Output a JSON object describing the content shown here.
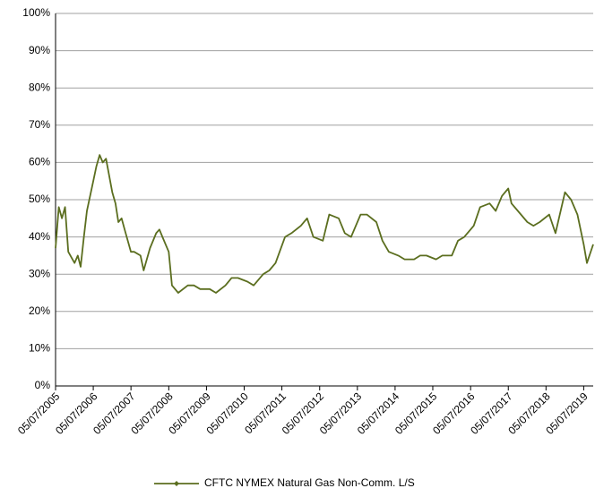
{
  "chart_data": {
    "type": "line",
    "x": [
      "05/07/2005",
      "05/08/2005",
      "05/09/2005",
      "05/10/2005",
      "05/11/2005",
      "05/01/2006",
      "05/02/2006",
      "05/03/2006",
      "05/04/2006",
      "05/05/2006",
      "05/07/2006",
      "05/08/2006",
      "05/09/2006",
      "05/10/2006",
      "05/11/2006",
      "05/01/2007",
      "05/02/2007",
      "05/03/2007",
      "05/04/2007",
      "05/05/2007",
      "05/07/2007",
      "05/08/2007",
      "05/10/2007",
      "05/11/2007",
      "05/01/2008",
      "05/03/2008",
      "05/04/2008",
      "05/05/2008",
      "05/07/2008",
      "05/08/2008",
      "05/10/2008",
      "05/01/2009",
      "05/03/2009",
      "05/05/2009",
      "05/08/2009",
      "05/10/2009",
      "05/01/2010",
      "05/03/2010",
      "05/05/2010",
      "05/08/2010",
      "05/10/2010",
      "05/01/2011",
      "05/03/2011",
      "05/05/2011",
      "05/08/2011",
      "05/10/2011",
      "05/01/2012",
      "05/03/2012",
      "05/05/2012",
      "05/08/2012",
      "05/10/2012",
      "05/01/2013",
      "05/03/2013",
      "05/05/2013",
      "05/08/2013",
      "05/10/2013",
      "05/01/2014",
      "05/03/2014",
      "05/05/2014",
      "05/08/2014",
      "05/10/2014",
      "05/01/2015",
      "05/03/2015",
      "05/05/2015",
      "05/08/2015",
      "05/10/2015",
      "05/01/2016",
      "05/03/2016",
      "05/05/2016",
      "05/08/2016",
      "05/10/2016",
      "05/01/2017",
      "05/03/2017",
      "05/05/2017",
      "05/07/2017",
      "05/08/2017",
      "05/10/2017",
      "05/01/2018",
      "05/03/2018",
      "05/05/2018",
      "05/08/2018",
      "05/10/2018",
      "05/01/2019",
      "05/03/2019",
      "05/05/2019",
      "05/07/2019",
      "05/08/2019",
      "05/10/2019"
    ],
    "series": [
      {
        "name": "CFTC NYMEX Natural Gas Non-Comm. L/S",
        "color": "#5b6e1f",
        "values": [
          37,
          48,
          45,
          48,
          36,
          33,
          35,
          32,
          40,
          47,
          55,
          59,
          62,
          60,
          61,
          52,
          49,
          44,
          45,
          42,
          36,
          36,
          35,
          31,
          37,
          41,
          42,
          40,
          36,
          27,
          25,
          27,
          27,
          26,
          26,
          25,
          27,
          29,
          29,
          28,
          27,
          30,
          31,
          33,
          40,
          41,
          43,
          45,
          40,
          39,
          46,
          45,
          41,
          40,
          46,
          46,
          44,
          39,
          36,
          35,
          34,
          34,
          35,
          35,
          34,
          35,
          35,
          39,
          40,
          43,
          48,
          49,
          47,
          51,
          53,
          49,
          47,
          44,
          43,
          44,
          46,
          41,
          52,
          50,
          46,
          38,
          33,
          38
        ]
      }
    ],
    "xlim": [
      "05/07/2005",
      "05/10/2019"
    ],
    "xticks": [
      "05/07/2005",
      "05/07/2006",
      "05/07/2007",
      "05/07/2008",
      "05/07/2009",
      "05/07/2010",
      "05/07/2011",
      "05/07/2012",
      "05/07/2013",
      "05/07/2014",
      "05/07/2015",
      "05/07/2016",
      "05/07/2017",
      "05/07/2018",
      "05/07/2019"
    ],
    "ylim": [
      0,
      100
    ],
    "yticks": [
      {
        "value": 0,
        "label": "0%"
      },
      {
        "value": 10,
        "label": "10%"
      },
      {
        "value": 20,
        "label": "20%"
      },
      {
        "value": 30,
        "label": "30%"
      },
      {
        "value": 40,
        "label": "40%"
      },
      {
        "value": 50,
        "label": "50%"
      },
      {
        "value": 60,
        "label": "60%"
      },
      {
        "value": 70,
        "label": "70%"
      },
      {
        "value": 80,
        "label": "80%"
      },
      {
        "value": 90,
        "label": "90%"
      },
      {
        "value": 100,
        "label": "100%"
      }
    ],
    "grid": true,
    "legend": "bottom"
  }
}
